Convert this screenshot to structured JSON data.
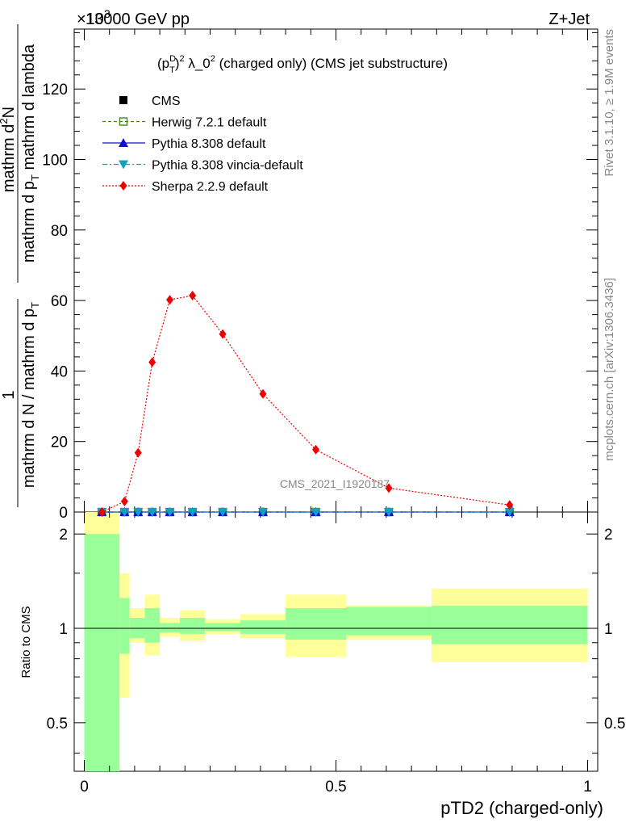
{
  "header": {
    "left": "13000 GeV pp",
    "right": "Z+Jet",
    "exponent_base": "×10",
    "exponent_power": "3"
  },
  "side_labels": {
    "rivet": "Rivet 3.1.10, ≥ 1.9M events",
    "mcplots": "mcplots.cern.ch [arXiv:1306.3436]"
  },
  "watermark": "CMS_2021_I1920187",
  "colors": {
    "cms": "#000000",
    "herwig": "#3a8a14",
    "pythia": "#1010c8",
    "vincia": "#10a0c0",
    "sherpa": "#ee0000",
    "band_inner": "#99ff99",
    "band_outer": "#ffff99"
  },
  "chart_data": [
    {
      "type": "line",
      "title": "(p_T^D)^2 λ_0^2 (charged only) (CMS jet substructure)",
      "title_parts": {
        "p": "(p",
        "sup": "D",
        "sub": "T",
        "close": ")",
        "sq": "2",
        "lam": " λ_0",
        "sq2": "2",
        "rest": " (charged only) (CMS jet substructure)"
      },
      "ylabel_numerator": "1",
      "ylabel_numerator_text": "mathrm d²N",
      "ylabel_num_top": "mathrm d",
      "ylabel_num_sup": "2",
      "ylabel_num_bot": "N",
      "ylabel_den_line1": "mathrm d N / mathrm d p",
      "ylabel_den_line1_sub": "T",
      "ylabel_den_line1_rest": " mathrm d p",
      "ylabel_den_line2_sub": "T",
      "ylabel_den_line2_rest": " mathrm d lambda",
      "ylabel_parts": {
        "frac1_num": "1",
        "frac1_den": "mathrm d N / mathrm d p",
        "frac1_den_sub": "T",
        "frac2_num_a": "mathrm d",
        "frac2_num_sup": "2",
        "frac2_num_b": "N",
        "frac2_den_a": "mathrm d p",
        "frac2_den_sub": "T",
        "frac2_den_b": " mathrm d lambda"
      },
      "xlim": [
        -0.02,
        1.02
      ],
      "ylim": [
        0,
        137000
      ],
      "yticks": [
        0,
        20000,
        40000,
        60000,
        80000,
        100000,
        120000
      ],
      "ytick_labels": [
        "0",
        "20",
        "40",
        "60",
        "80",
        "100",
        "120"
      ],
      "legend": [
        {
          "name": "CMS",
          "marker": "square",
          "line": "none",
          "key": "cms"
        },
        {
          "name": "Herwig 7.2.1 default",
          "marker": "open-square",
          "line": "dashed",
          "key": "herwig"
        },
        {
          "name": "Pythia 8.308 default",
          "marker": "triangle-up",
          "line": "solid",
          "key": "pythia"
        },
        {
          "name": "Pythia 8.308 vincia-default",
          "marker": "triangle-down",
          "line": "dashdot",
          "key": "vincia"
        },
        {
          "name": "Sherpa 2.2.9 default",
          "marker": "diamond",
          "line": "dotted",
          "key": "sherpa"
        }
      ],
      "series": [
        {
          "name": "CMS",
          "x": [
            0.035,
            0.08,
            0.107,
            0.135,
            0.17,
            0.215,
            0.275,
            0.355,
            0.46,
            0.605,
            0.845
          ],
          "y": [
            0,
            0,
            0,
            0,
            0,
            0,
            0,
            0,
            0,
            0,
            0
          ]
        },
        {
          "name": "Herwig 7.2.1 default",
          "x": [
            0.035,
            0.08,
            0.107,
            0.135,
            0.17,
            0.215,
            0.275,
            0.355,
            0.46,
            0.605,
            0.845
          ],
          "y": [
            0,
            0,
            0,
            0,
            0,
            0,
            0,
            0,
            0,
            0,
            0
          ]
        },
        {
          "name": "Pythia 8.308 default",
          "x": [
            0.035,
            0.08,
            0.107,
            0.135,
            0.17,
            0.215,
            0.275,
            0.355,
            0.46,
            0.605,
            0.845
          ],
          "y": [
            0,
            0,
            0,
            0,
            0,
            0,
            0,
            0,
            0,
            0,
            0
          ]
        },
        {
          "name": "Pythia 8.308 vincia-default",
          "x": [
            0.035,
            0.08,
            0.107,
            0.135,
            0.17,
            0.215,
            0.275,
            0.355,
            0.46,
            0.605,
            0.845
          ],
          "y": [
            0,
            0,
            0,
            0,
            0,
            0,
            0,
            0,
            0,
            0,
            0
          ]
        },
        {
          "name": "Sherpa 2.2.9 default",
          "x": [
            0.035,
            0.08,
            0.107,
            0.135,
            0.17,
            0.215,
            0.275,
            0.355,
            0.46,
            0.605,
            0.845
          ],
          "y": [
            0,
            3000,
            16800,
            42500,
            60200,
            61400,
            50500,
            33500,
            17700,
            6800,
            2000
          ]
        }
      ]
    },
    {
      "type": "area",
      "ylabel": "Ratio to CMS",
      "xlabel": "pTD2 (charged-only)",
      "xlim": [
        -0.02,
        1.02
      ],
      "ylim": [
        0.35,
        2.35
      ],
      "yscale": "log",
      "xticks": [
        0,
        0.5,
        1
      ],
      "xtick_labels": [
        "0",
        "0.5",
        "1"
      ],
      "yticks": [
        0.5,
        1,
        2
      ],
      "ytick_labels": [
        "0.5",
        "1",
        "2"
      ],
      "bins": [
        {
          "x0": 0.0,
          "x1": 0.07,
          "inner": [
            0.35,
            2.0
          ],
          "outer": [
            0.35,
            2.35
          ]
        },
        {
          "x0": 0.07,
          "x1": 0.09,
          "inner": [
            0.83,
            1.25
          ],
          "outer": [
            0.6,
            1.5
          ]
        },
        {
          "x0": 0.09,
          "x1": 0.12,
          "inner": [
            0.93,
            1.08
          ],
          "outer": [
            0.9,
            1.16
          ]
        },
        {
          "x0": 0.12,
          "x1": 0.15,
          "inner": [
            0.9,
            1.16
          ],
          "outer": [
            0.82,
            1.28
          ]
        },
        {
          "x0": 0.15,
          "x1": 0.19,
          "inner": [
            0.97,
            1.04
          ],
          "outer": [
            0.94,
            1.08
          ]
        },
        {
          "x0": 0.19,
          "x1": 0.24,
          "inner": [
            0.96,
            1.08
          ],
          "outer": [
            0.91,
            1.14
          ]
        },
        {
          "x0": 0.24,
          "x1": 0.31,
          "inner": [
            0.98,
            1.04
          ],
          "outer": [
            0.96,
            1.07
          ]
        },
        {
          "x0": 0.31,
          "x1": 0.4,
          "inner": [
            0.96,
            1.06
          ],
          "outer": [
            0.93,
            1.11
          ]
        },
        {
          "x0": 0.4,
          "x1": 0.52,
          "inner": [
            0.92,
            1.16
          ],
          "outer": [
            0.81,
            1.28
          ]
        },
        {
          "x0": 0.52,
          "x1": 0.69,
          "inner": [
            0.95,
            1.17
          ],
          "outer": [
            0.92,
            1.18
          ]
        },
        {
          "x0": 0.69,
          "x1": 1.0,
          "inner": [
            0.89,
            1.18
          ],
          "outer": [
            0.78,
            1.34
          ]
        }
      ],
      "reference_line": 1
    }
  ]
}
